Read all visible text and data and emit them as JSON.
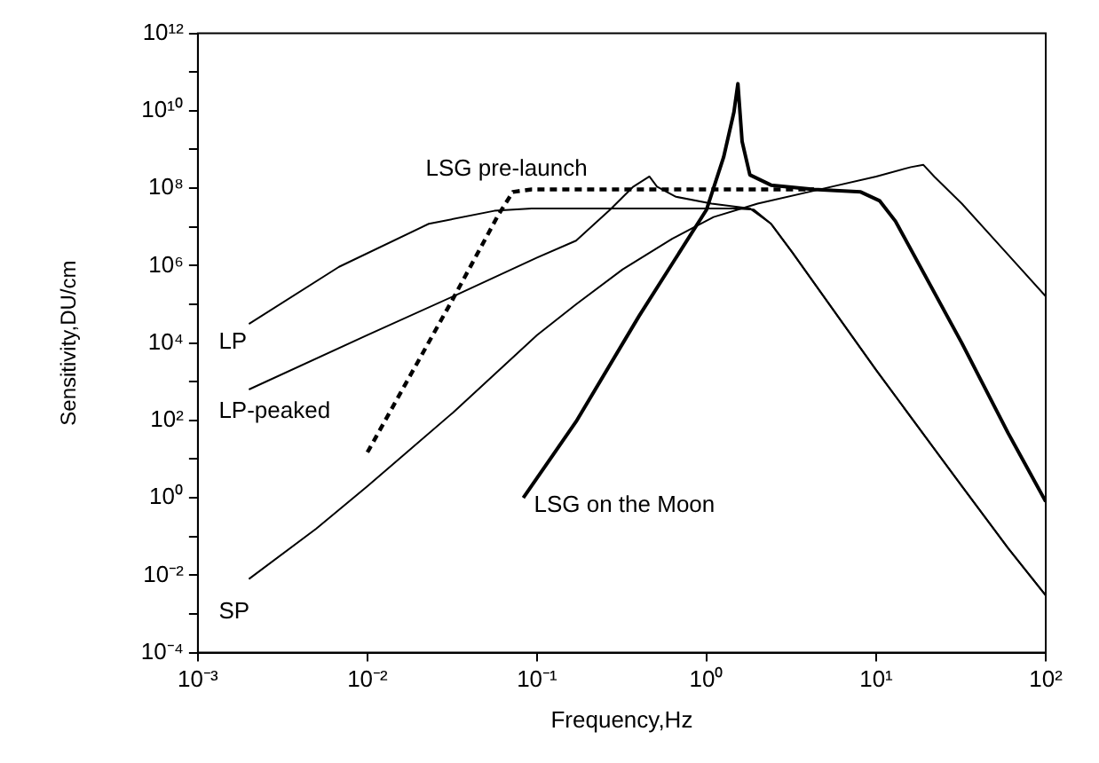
{
  "chart_data": {
    "type": "line",
    "xlabel": "Frequency,Hz",
    "ylabel": "Sensitivity,DU/cm",
    "log": "xy",
    "grid": false,
    "legend": false,
    "marker": "none",
    "xlim": [
      0.001,
      100
    ],
    "xticks": [
      {
        "value": 0.001,
        "label": "10⁻³"
      },
      {
        "value": 0.01,
        "label": "10⁻²"
      },
      {
        "value": 0.1,
        "label": "10⁻¹"
      },
      {
        "value": 1,
        "label": "10⁰"
      },
      {
        "value": 10,
        "label": "10¹"
      },
      {
        "value": 100,
        "label": "10²"
      }
    ],
    "ylim": [
      0.0001,
      1000000000000.0
    ],
    "yticks": [
      {
        "value": 0.0001,
        "label": "10⁻⁴"
      },
      {
        "value": 0.001,
        "label": null
      },
      {
        "value": 0.01,
        "label": "10⁻²"
      },
      {
        "value": 0.1,
        "label": null
      },
      {
        "value": 1,
        "label": "10⁰"
      },
      {
        "value": 10,
        "label": null
      },
      {
        "value": 100,
        "label": "10²"
      },
      {
        "value": 1000,
        "label": null
      },
      {
        "value": 10000,
        "label": "10⁴"
      },
      {
        "value": 100000,
        "label": null
      },
      {
        "value": 1000000,
        "label": "10⁶"
      },
      {
        "value": 10000000,
        "label": null
      },
      {
        "value": 100000000,
        "label": "10⁸"
      },
      {
        "value": 1000000000,
        "label": null
      },
      {
        "value": 10000000000,
        "label": "10¹⁰"
      },
      {
        "value": 100000000000,
        "label": null
      },
      {
        "value": 1000000000000,
        "label": "10¹²"
      }
    ],
    "series": [
      {
        "name": "SP",
        "color": "#000000",
        "line_style": "solid",
        "x": [
          0.002,
          0.005,
          0.01,
          0.032,
          0.1,
          0.17,
          0.32,
          0.63,
          1.1,
          2.0,
          5.0,
          10,
          16,
          19,
          22,
          32,
          60,
          100
        ],
        "values": [
          0.008,
          0.16,
          2,
          160,
          16000,
          100000,
          800000,
          5000000,
          18000000,
          40000000,
          100000000,
          200000000,
          350000000,
          400000000,
          200000000,
          40000000,
          1900000,
          160000
        ]
      },
      {
        "name": "LP",
        "color": "#000000",
        "line_style": "solid",
        "x": [
          0.002,
          0.0068,
          0.023,
          0.056,
          0.093,
          0.3,
          1.0,
          1.5,
          1.9,
          2.4,
          3.2,
          10,
          32,
          60,
          100
        ],
        "values": [
          31000,
          930000,
          12000000,
          26000000,
          30000000,
          30000000,
          30000000,
          30000000,
          28000000,
          12000000,
          2200000,
          2000,
          2,
          0.05,
          0.003
        ]
      },
      {
        "name": "LP-peaked",
        "color": "#000000",
        "line_style": "solid",
        "x": [
          0.002,
          0.01,
          0.032,
          0.1,
          0.17,
          0.27,
          0.37,
          0.46,
          0.51,
          0.66,
          1.07,
          1.8,
          2.4,
          3.2,
          10,
          32,
          60,
          100
        ],
        "values": [
          630,
          16000,
          160000,
          1600000,
          4400000,
          28000000,
          110000000,
          200000000,
          110000000,
          60000000,
          40000000,
          30000000,
          12000000,
          2200000,
          2000,
          2,
          0.05,
          0.003
        ]
      },
      {
        "name": "LSG pre-launch",
        "color": "#000000",
        "line_style": "dashed",
        "x": [
          0.01,
          0.032,
          0.059,
          0.072,
          0.093,
          4.3
        ],
        "values": [
          15,
          140000,
          20000000,
          80000000,
          93000000,
          93000000
        ]
      },
      {
        "name": "LSG on the Moon",
        "color": "#000000",
        "line_style": "solid",
        "x": [
          0.083,
          0.17,
          0.4,
          1.0,
          1.26,
          1.45,
          1.53,
          1.62,
          1.8,
          2.4,
          4.3,
          8.1,
          10.5,
          13,
          32,
          60,
          100
        ],
        "values": [
          1,
          93,
          50000,
          28000000,
          630000000,
          9300000000,
          50000000000,
          1600000000,
          220000000,
          120000000,
          93000000,
          80000000,
          47000000,
          14000000,
          10000,
          47,
          0.8
        ]
      }
    ]
  }
}
